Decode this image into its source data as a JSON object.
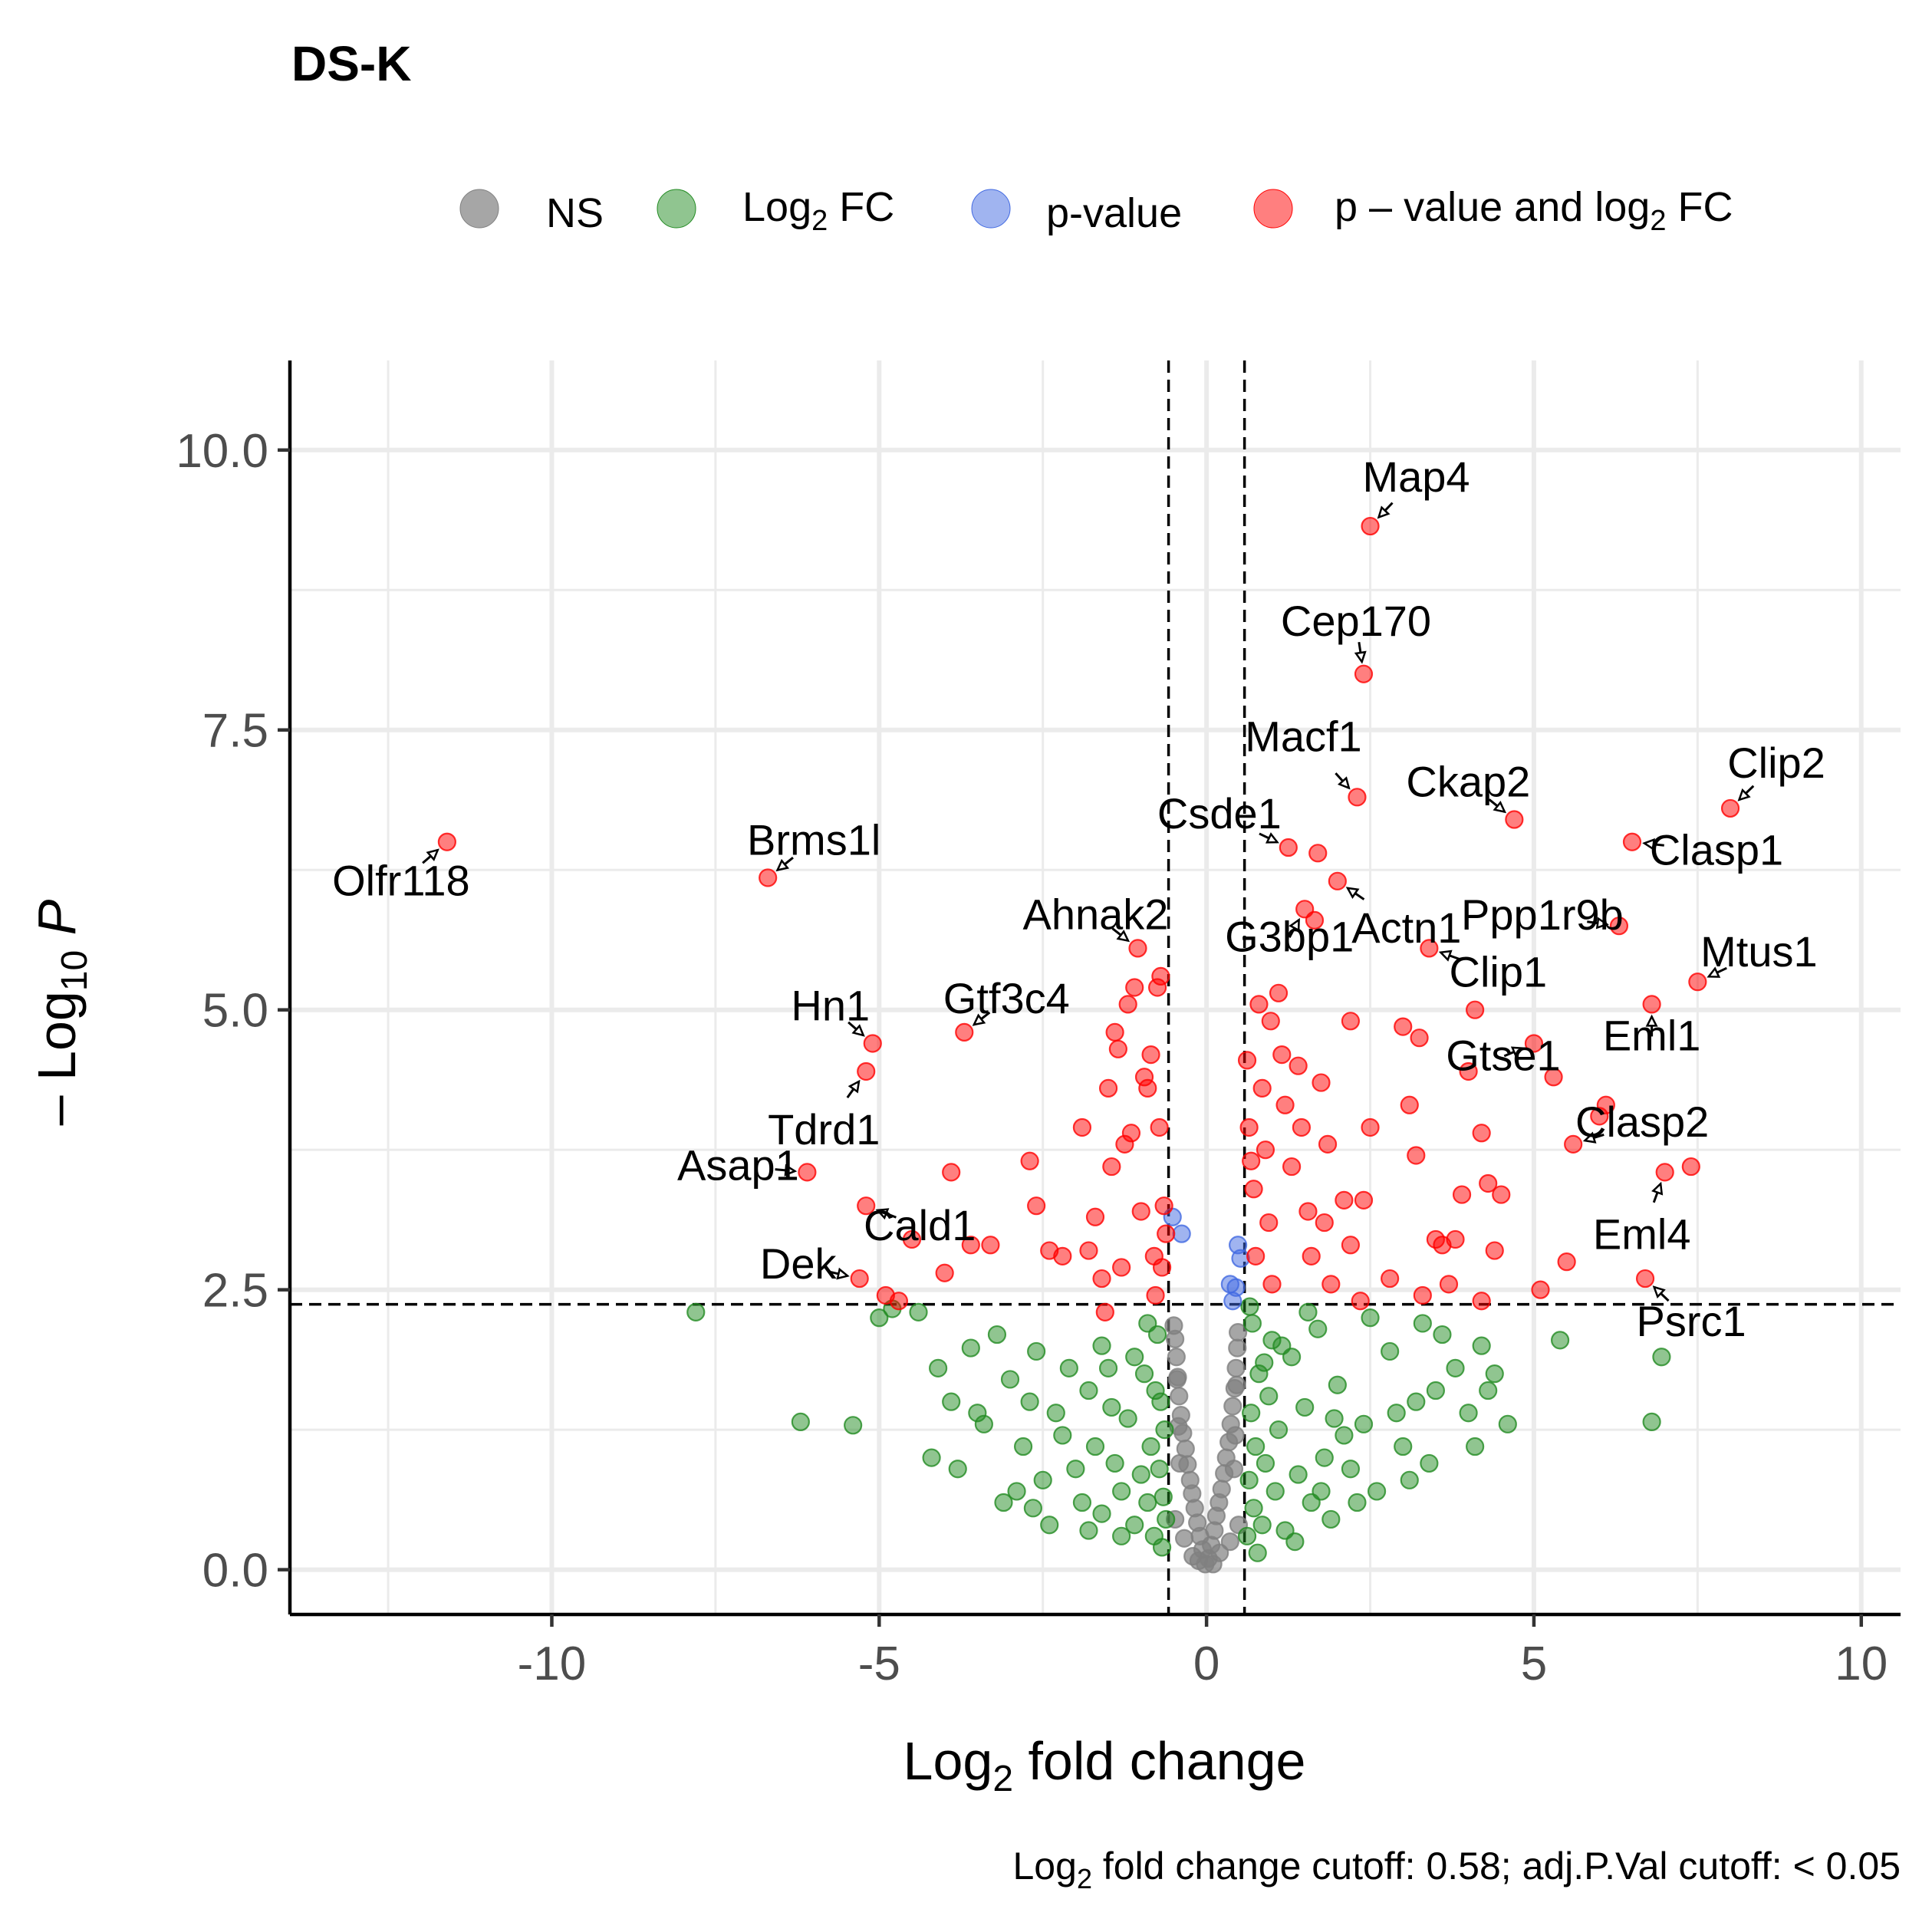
{
  "chart_data": {
    "type": "scatter",
    "title": "DS-K",
    "xlabel": "Log2 fold change",
    "ylabel": "-Log10 P",
    "xlim": [
      -14.0,
      10.6
    ],
    "ylim": [
      -0.4,
      10.8
    ],
    "x_ticks": [
      -10,
      -5,
      0,
      5,
      10
    ],
    "y_ticks": [
      0.0,
      2.5,
      5.0,
      7.5,
      10.0
    ],
    "x_tick_labels": [
      "-10",
      "-5",
      "0",
      "5",
      "10"
    ],
    "y_tick_labels": [
      "0.0",
      "2.5",
      "5.0",
      "7.5",
      "10.0"
    ],
    "grid": true,
    "legend_position": "top",
    "caption": "Log2 fold change cutoff: 0.58; adj.P.Val cutoff: < 0.05",
    "cutoffs": {
      "log2fc": 0.58,
      "pvalue_line": 2.37
    },
    "colors": {
      "NS": "#808080",
      "Log2 FC": "#228B22",
      "p-value": "#4169E1",
      "p - value and log2 FC": "#FF0000"
    },
    "series": [
      {
        "name": "NS",
        "color": "#808080",
        "points": [
          [
            -0.02,
            0.05
          ],
          [
            0.03,
            0.1
          ],
          [
            -0.06,
            0.18
          ],
          [
            0.07,
            0.22
          ],
          [
            -0.1,
            0.3
          ],
          [
            0.12,
            0.35
          ],
          [
            -0.14,
            0.42
          ],
          [
            0.15,
            0.48
          ],
          [
            -0.18,
            0.55
          ],
          [
            0.19,
            0.6
          ],
          [
            -0.22,
            0.68
          ],
          [
            0.23,
            0.72
          ],
          [
            -0.25,
            0.8
          ],
          [
            0.27,
            0.86
          ],
          [
            -0.29,
            0.94
          ],
          [
            0.3,
            1.0
          ],
          [
            -0.32,
            1.08
          ],
          [
            0.34,
            1.14
          ],
          [
            -0.36,
            1.22
          ],
          [
            0.37,
            1.3
          ],
          [
            -0.39,
            1.38
          ],
          [
            0.4,
            1.46
          ],
          [
            -0.42,
            1.55
          ],
          [
            0.43,
            1.62
          ],
          [
            -0.44,
            1.72
          ],
          [
            0.45,
            1.8
          ],
          [
            -0.46,
            1.9
          ],
          [
            0.47,
            1.98
          ],
          [
            -0.48,
            2.06
          ],
          [
            0.48,
            2.12
          ],
          [
            -0.5,
            2.18
          ],
          [
            0.49,
            0.4
          ],
          [
            -0.48,
            0.45
          ],
          [
            0.36,
            0.25
          ],
          [
            -0.34,
            0.28
          ],
          [
            0.42,
            0.9
          ],
          [
            -0.41,
            0.95
          ],
          [
            0.1,
            0.05
          ],
          [
            -0.12,
            0.08
          ],
          [
            0.2,
            0.15
          ],
          [
            -0.21,
            0.12
          ],
          [
            0.44,
            1.2
          ],
          [
            -0.43,
            1.28
          ],
          [
            0.46,
            1.65
          ],
          [
            -0.45,
            1.7
          ]
        ]
      },
      {
        "name": "Log2 FC",
        "color": "#228B22",
        "points": [
          [
            -7.8,
            2.3
          ],
          [
            -6.2,
            1.32
          ],
          [
            -5.4,
            1.29
          ],
          [
            -4.8,
            2.33
          ],
          [
            -4.4,
            2.3
          ],
          [
            -4.1,
            1.8
          ],
          [
            -3.9,
            1.5
          ],
          [
            -3.6,
            1.98
          ],
          [
            -3.4,
            1.3
          ],
          [
            -3.2,
            2.1
          ],
          [
            -3.0,
            1.7
          ],
          [
            -2.8,
            1.1
          ],
          [
            -2.6,
            1.95
          ],
          [
            -2.5,
            0.8
          ],
          [
            -2.3,
            1.4
          ],
          [
            -2.2,
            1.2
          ],
          [
            -2.0,
            0.9
          ],
          [
            -1.9,
            0.6
          ],
          [
            -1.8,
            1.6
          ],
          [
            -1.7,
            1.1
          ],
          [
            -1.6,
            0.5
          ],
          [
            -1.5,
            1.8
          ],
          [
            -1.4,
            0.95
          ],
          [
            -1.3,
            0.7
          ],
          [
            -1.2,
            1.35
          ],
          [
            -1.1,
            0.4
          ],
          [
            -1.0,
            0.85
          ],
          [
            -0.95,
            1.75
          ],
          [
            -0.9,
            0.6
          ],
          [
            -0.85,
            1.1
          ],
          [
            -0.8,
            0.3
          ],
          [
            -0.75,
            2.1
          ],
          [
            -0.72,
            0.9
          ],
          [
            -0.7,
            1.5
          ],
          [
            -0.68,
            0.2
          ],
          [
            -0.66,
            0.65
          ],
          [
            -0.64,
            1.25
          ],
          [
            -0.62,
            0.45
          ],
          [
            -3.8,
            0.9
          ],
          [
            -3.1,
            0.6
          ],
          [
            -2.7,
            1.5
          ],
          [
            -1.6,
            2.0
          ],
          [
            -2.4,
            0.4
          ],
          [
            -1.1,
            1.9
          ],
          [
            -0.9,
            2.2
          ],
          [
            -4.2,
            1.0
          ],
          [
            -5.0,
            2.25
          ],
          [
            -3.5,
            1.4
          ],
          [
            -2.9,
            0.7
          ],
          [
            -1.3,
            0.3
          ],
          [
            -2.1,
            1.8
          ],
          [
            -1.8,
            0.35
          ],
          [
            -0.78,
            1.6
          ],
          [
            -1.45,
            1.45
          ],
          [
            -2.65,
            0.55
          ],
          [
            0.62,
            0.3
          ],
          [
            0.65,
            0.8
          ],
          [
            0.68,
            1.4
          ],
          [
            0.7,
            2.2
          ],
          [
            0.72,
            0.55
          ],
          [
            0.75,
            1.1
          ],
          [
            0.8,
            1.75
          ],
          [
            0.85,
            0.4
          ],
          [
            0.9,
            0.95
          ],
          [
            0.95,
            1.55
          ],
          [
            1.0,
            2.05
          ],
          [
            1.05,
            0.7
          ],
          [
            1.1,
            1.25
          ],
          [
            1.2,
            0.35
          ],
          [
            1.3,
            1.9
          ],
          [
            1.4,
            0.85
          ],
          [
            1.5,
            1.45
          ],
          [
            1.6,
            0.6
          ],
          [
            1.7,
            2.15
          ],
          [
            1.8,
            1.0
          ],
          [
            1.9,
            0.45
          ],
          [
            2.0,
            1.65
          ],
          [
            2.2,
            0.9
          ],
          [
            2.4,
            1.3
          ],
          [
            2.6,
            0.7
          ],
          [
            2.8,
            1.95
          ],
          [
            3.0,
            1.1
          ],
          [
            3.2,
            1.5
          ],
          [
            3.4,
            0.95
          ],
          [
            3.6,
            2.1
          ],
          [
            3.8,
            1.8
          ],
          [
            4.0,
            1.4
          ],
          [
            4.2,
            2.0
          ],
          [
            4.4,
            1.75
          ],
          [
            4.6,
            1.3
          ],
          [
            5.4,
            2.05
          ],
          [
            6.8,
            1.32
          ],
          [
            6.95,
            1.9
          ],
          [
            3.1,
            0.8
          ],
          [
            2.5,
            2.25
          ],
          [
            1.95,
            1.35
          ],
          [
            1.15,
            2.0
          ],
          [
            0.78,
            0.15
          ],
          [
            1.35,
            0.25
          ],
          [
            2.3,
            0.6
          ],
          [
            3.5,
            1.6
          ],
          [
            4.1,
            1.1
          ],
          [
            2.9,
            1.4
          ],
          [
            0.88,
            1.85
          ],
          [
            1.75,
            0.7
          ],
          [
            2.1,
            1.2
          ],
          [
            3.3,
            2.2
          ],
          [
            4.3,
            1.6
          ],
          [
            0.66,
            2.35
          ],
          [
            1.55,
            2.3
          ]
        ]
      },
      {
        "name": "p-value",
        "color": "#4169E1",
        "points": [
          [
            -0.52,
            3.15
          ],
          [
            -0.38,
            3.0
          ],
          [
            0.48,
            2.9
          ],
          [
            0.52,
            2.78
          ],
          [
            0.36,
            2.55
          ],
          [
            0.45,
            2.52
          ],
          [
            0.4,
            2.4
          ]
        ]
      },
      {
        "name": "p - value and log2 FC",
        "color": "#FF0000",
        "points": [
          [
            -11.6,
            6.5
          ],
          [
            -6.7,
            6.18
          ],
          [
            -6.1,
            3.55
          ],
          [
            -5.2,
            4.45
          ],
          [
            -5.1,
            4.7
          ],
          [
            -4.9,
            2.45
          ],
          [
            -5.3,
            2.6
          ],
          [
            -5.2,
            3.25
          ],
          [
            -3.7,
            4.8
          ],
          [
            -3.9,
            3.55
          ],
          [
            -3.6,
            2.9
          ],
          [
            -3.3,
            2.9
          ],
          [
            -2.7,
            3.65
          ],
          [
            -2.6,
            3.25
          ],
          [
            -2.4,
            2.85
          ],
          [
            -2.2,
            2.8
          ],
          [
            -1.9,
            3.95
          ],
          [
            -1.8,
            2.85
          ],
          [
            -1.6,
            2.6
          ],
          [
            -1.5,
            4.3
          ],
          [
            -1.45,
            3.6
          ],
          [
            -1.4,
            4.8
          ],
          [
            -1.35,
            4.65
          ],
          [
            -1.3,
            2.7
          ],
          [
            -1.25,
            3.8
          ],
          [
            -1.2,
            5.05
          ],
          [
            -1.15,
            3.9
          ],
          [
            -1.1,
            5.2
          ],
          [
            -1.05,
            5.55
          ],
          [
            -1.0,
            3.2
          ],
          [
            -0.95,
            4.4
          ],
          [
            -0.9,
            4.3
          ],
          [
            -0.85,
            4.6
          ],
          [
            -0.8,
            2.8
          ],
          [
            -0.75,
            5.2
          ],
          [
            -0.72,
            3.95
          ],
          [
            -0.7,
            5.3
          ],
          [
            -0.68,
            2.7
          ],
          [
            -0.65,
            3.25
          ],
          [
            -0.62,
            3.0
          ],
          [
            -4.5,
            2.95
          ],
          [
            -4.0,
            2.65
          ],
          [
            -4.7,
            2.4
          ],
          [
            -1.7,
            3.15
          ],
          [
            -0.78,
            2.45
          ],
          [
            -1.55,
            2.3
          ],
          [
            0.62,
            4.55
          ],
          [
            0.65,
            3.95
          ],
          [
            0.68,
            3.65
          ],
          [
            0.72,
            3.4
          ],
          [
            0.75,
            2.8
          ],
          [
            0.8,
            5.05
          ],
          [
            0.85,
            4.3
          ],
          [
            0.9,
            3.75
          ],
          [
            0.95,
            3.1
          ],
          [
            1.0,
            2.55
          ],
          [
            1.1,
            5.15
          ],
          [
            1.15,
            4.6
          ],
          [
            1.2,
            4.15
          ],
          [
            1.25,
            6.45
          ],
          [
            1.3,
            3.6
          ],
          [
            1.4,
            4.5
          ],
          [
            1.45,
            3.95
          ],
          [
            1.5,
            5.9
          ],
          [
            1.55,
            3.2
          ],
          [
            1.6,
            2.8
          ],
          [
            1.7,
            6.4
          ],
          [
            1.75,
            4.35
          ],
          [
            1.8,
            3.1
          ],
          [
            1.85,
            3.8
          ],
          [
            1.9,
            2.55
          ],
          [
            2.0,
            6.15
          ],
          [
            2.1,
            3.3
          ],
          [
            2.2,
            4.9
          ],
          [
            2.3,
            6.9
          ],
          [
            2.4,
            3.3
          ],
          [
            2.5,
            3.95
          ],
          [
            2.4,
            8.0
          ],
          [
            2.5,
            9.32
          ],
          [
            2.2,
            2.9
          ],
          [
            2.8,
            2.6
          ],
          [
            3.0,
            4.85
          ],
          [
            3.1,
            4.15
          ],
          [
            3.2,
            3.7
          ],
          [
            3.3,
            2.45
          ],
          [
            3.4,
            5.55
          ],
          [
            3.5,
            2.95
          ],
          [
            3.6,
            2.9
          ],
          [
            3.7,
            2.55
          ],
          [
            3.8,
            2.95
          ],
          [
            3.9,
            3.35
          ],
          [
            4.0,
            4.45
          ],
          [
            4.1,
            5.0
          ],
          [
            4.2,
            2.4
          ],
          [
            4.3,
            3.45
          ],
          [
            4.4,
            2.85
          ],
          [
            4.5,
            3.35
          ],
          [
            4.7,
            6.7
          ],
          [
            5.0,
            4.7
          ],
          [
            5.1,
            2.5
          ],
          [
            5.3,
            4.4
          ],
          [
            5.5,
            2.75
          ],
          [
            5.6,
            3.8
          ],
          [
            6.0,
            4.05
          ],
          [
            6.1,
            4.15
          ],
          [
            6.3,
            5.75
          ],
          [
            6.5,
            6.5
          ],
          [
            6.7,
            2.6
          ],
          [
            6.8,
            5.05
          ],
          [
            7.0,
            3.55
          ],
          [
            7.4,
            3.6
          ],
          [
            7.5,
            5.25
          ],
          [
            8.0,
            6.8
          ],
          [
            2.35,
            2.4
          ],
          [
            1.65,
            5.8
          ],
          [
            0.98,
            4.9
          ],
          [
            3.25,
            4.75
          ],
          [
            4.2,
            3.9
          ]
        ]
      }
    ],
    "labels": [
      {
        "text": "Map4",
        "x": 2.5,
        "y": 9.32
      },
      {
        "text": "Cep170",
        "x": 2.4,
        "y": 8.0
      },
      {
        "text": "Macf1",
        "x": 2.3,
        "y": 6.9
      },
      {
        "text": "Ckap2",
        "x": 4.7,
        "y": 6.7
      },
      {
        "text": "Clip2",
        "x": 8.0,
        "y": 6.8
      },
      {
        "text": "Csde1",
        "x": 1.25,
        "y": 6.45
      },
      {
        "text": "Clasp1",
        "x": 6.5,
        "y": 6.5
      },
      {
        "text": "Actn1",
        "x": 2.0,
        "y": 6.15
      },
      {
        "text": "Ppp1r9b",
        "x": 6.3,
        "y": 5.75
      },
      {
        "text": "G3bp1",
        "x": 1.5,
        "y": 5.9
      },
      {
        "text": "Mtus1",
        "x": 7.5,
        "y": 5.25
      },
      {
        "text": "Clip1",
        "x": 3.4,
        "y": 5.55
      },
      {
        "text": "Eml1",
        "x": 6.8,
        "y": 5.05
      },
      {
        "text": "Gtse1",
        "x": 5.0,
        "y": 4.7
      },
      {
        "text": "Clasp2",
        "x": 5.6,
        "y": 3.8
      },
      {
        "text": "Eml4",
        "x": 7.0,
        "y": 3.55
      },
      {
        "text": "Psrc1",
        "x": 6.7,
        "y": 2.6
      },
      {
        "text": "Olfr118",
        "x": -11.6,
        "y": 6.5
      },
      {
        "text": "Brms1l",
        "x": -6.7,
        "y": 6.18
      },
      {
        "text": "Ahnak2",
        "x": -1.05,
        "y": 5.55
      },
      {
        "text": "Gtf3c4",
        "x": -3.7,
        "y": 4.8
      },
      {
        "text": "Hn1",
        "x": -5.1,
        "y": 4.7
      },
      {
        "text": "Tdrd1",
        "x": -5.2,
        "y": 4.45
      },
      {
        "text": "Asap1",
        "x": -6.1,
        "y": 3.55
      },
      {
        "text": "Cald1",
        "x": -5.2,
        "y": 3.25
      },
      {
        "text": "Dek",
        "x": -5.3,
        "y": 2.6
      }
    ]
  }
}
